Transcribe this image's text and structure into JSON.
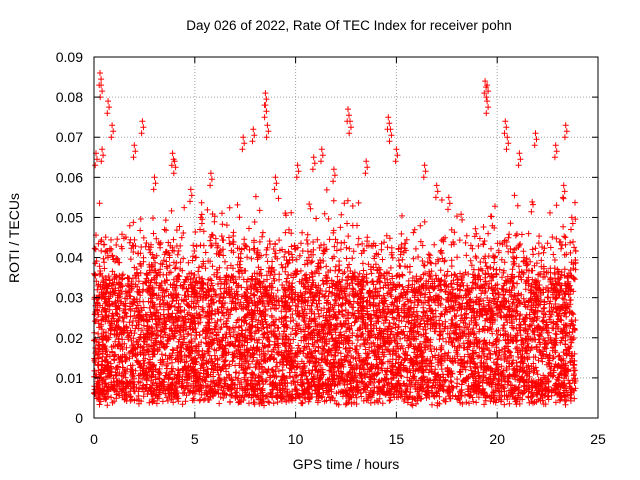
{
  "chart_data": {
    "type": "scatter",
    "title": "Day 026 of 2022, Rate Of TEC Index for receiver pohn",
    "xlabel": "GPS time / hours",
    "ylabel": "ROTI / TECUs",
    "xlim": [
      0,
      25
    ],
    "ylim": [
      0,
      0.09
    ],
    "xticks": [
      0,
      5,
      10,
      15,
      20,
      25
    ],
    "xtick_labels": [
      "0",
      "5",
      "10",
      "15",
      "20",
      "25"
    ],
    "yticks": [
      0,
      0.01,
      0.02,
      0.03,
      0.04,
      0.05,
      0.06,
      0.07,
      0.08,
      0.09
    ],
    "ytick_labels": [
      "0",
      "0.01",
      "0.02",
      "0.03",
      "0.04",
      "0.05",
      "0.06",
      "0.07",
      "0.08",
      "0.09"
    ],
    "grid": true,
    "marker": "+",
    "color": "#ff0000",
    "series": [
      {
        "name": "ROTI",
        "x_range": [
          0,
          23.9
        ],
        "typical_range": [
          0.005,
          0.035
        ],
        "points": [
          [
            0.3,
            0.086
          ],
          [
            0.35,
            0.083
          ],
          [
            0.7,
            0.079
          ],
          [
            0.9,
            0.073
          ],
          [
            0.1,
            0.066
          ],
          [
            0.4,
            0.067
          ],
          [
            2.0,
            0.068
          ],
          [
            2.4,
            0.074
          ],
          [
            3.0,
            0.06
          ],
          [
            3.9,
            0.066
          ],
          [
            4.0,
            0.064
          ],
          [
            4.8,
            0.057
          ],
          [
            5.3,
            0.05
          ],
          [
            5.8,
            0.061
          ],
          [
            7.4,
            0.07
          ],
          [
            7.9,
            0.072
          ],
          [
            8.5,
            0.081
          ],
          [
            8.5,
            0.078
          ],
          [
            8.6,
            0.073
          ],
          [
            9.0,
            0.06
          ],
          [
            10.1,
            0.063
          ],
          [
            10.9,
            0.065
          ],
          [
            11.3,
            0.067
          ],
          [
            11.9,
            0.062
          ],
          [
            12.6,
            0.077
          ],
          [
            12.7,
            0.074
          ],
          [
            13.5,
            0.064
          ],
          [
            14.6,
            0.075
          ],
          [
            14.7,
            0.072
          ],
          [
            15.0,
            0.067
          ],
          [
            16.4,
            0.063
          ],
          [
            17.0,
            0.058
          ],
          [
            17.6,
            0.055
          ],
          [
            19.4,
            0.084
          ],
          [
            19.5,
            0.083
          ],
          [
            19.5,
            0.079
          ],
          [
            20.4,
            0.074
          ],
          [
            20.5,
            0.07
          ],
          [
            21.1,
            0.066
          ],
          [
            21.9,
            0.071
          ],
          [
            22.9,
            0.068
          ],
          [
            23.3,
            0.058
          ],
          [
            23.4,
            0.073
          ],
          [
            23.7,
            0.05
          ]
        ]
      }
    ]
  }
}
